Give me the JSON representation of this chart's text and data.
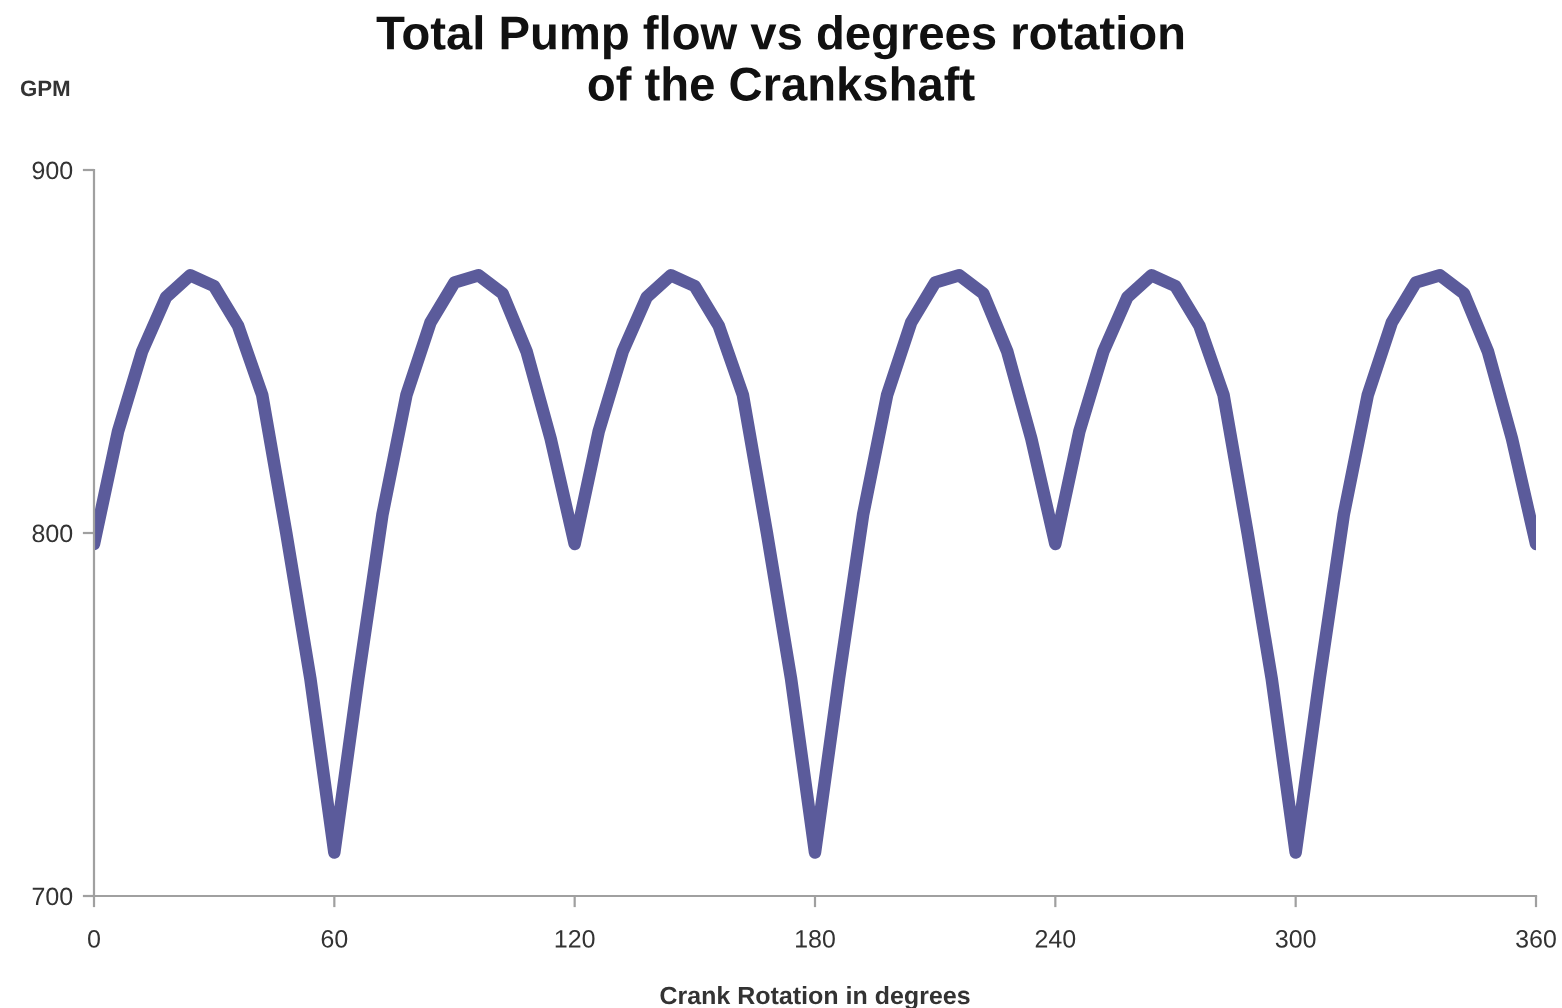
{
  "chart_data": {
    "type": "line",
    "title": "Total Pump flow vs degrees rotation\nof the Crankshaft",
    "xlabel": "Crank Rotation in degrees",
    "ylabel": "GPM",
    "x": [
      0,
      6,
      12,
      18,
      24,
      30,
      36,
      42,
      48,
      54,
      60,
      66,
      72,
      78,
      84,
      90,
      96,
      102,
      108,
      114,
      120,
      126,
      132,
      138,
      144,
      150,
      156,
      162,
      168,
      174,
      180,
      186,
      192,
      198,
      204,
      210,
      216,
      222,
      228,
      234,
      240,
      246,
      252,
      258,
      264,
      270,
      276,
      282,
      288,
      294,
      300,
      306,
      312,
      318,
      324,
      330,
      336,
      342,
      348,
      354,
      360
    ],
    "series": [
      {
        "color": "#5b5b9b",
        "values": [
          797,
          828,
          850,
          865,
          871,
          868,
          857,
          838,
          800,
          760,
          712,
          760,
          805,
          838,
          858,
          869,
          871,
          866,
          850,
          826,
          797,
          828,
          850,
          865,
          871,
          868,
          857,
          838,
          800,
          760,
          712,
          760,
          805,
          838,
          858,
          869,
          871,
          866,
          850,
          826,
          797,
          828,
          850,
          865,
          871,
          868,
          857,
          838,
          800,
          760,
          712,
          760,
          805,
          838,
          858,
          869,
          871,
          866,
          850,
          826,
          797
        ]
      }
    ],
    "xlim": [
      0,
      360
    ],
    "xticks": [
      0,
      60,
      120,
      180,
      240,
      300,
      360
    ],
    "ylim": [
      700,
      900
    ],
    "yticks": [
      700,
      800,
      900
    ],
    "grid": false,
    "legend": false,
    "marker": "none",
    "line_style": "solid"
  }
}
